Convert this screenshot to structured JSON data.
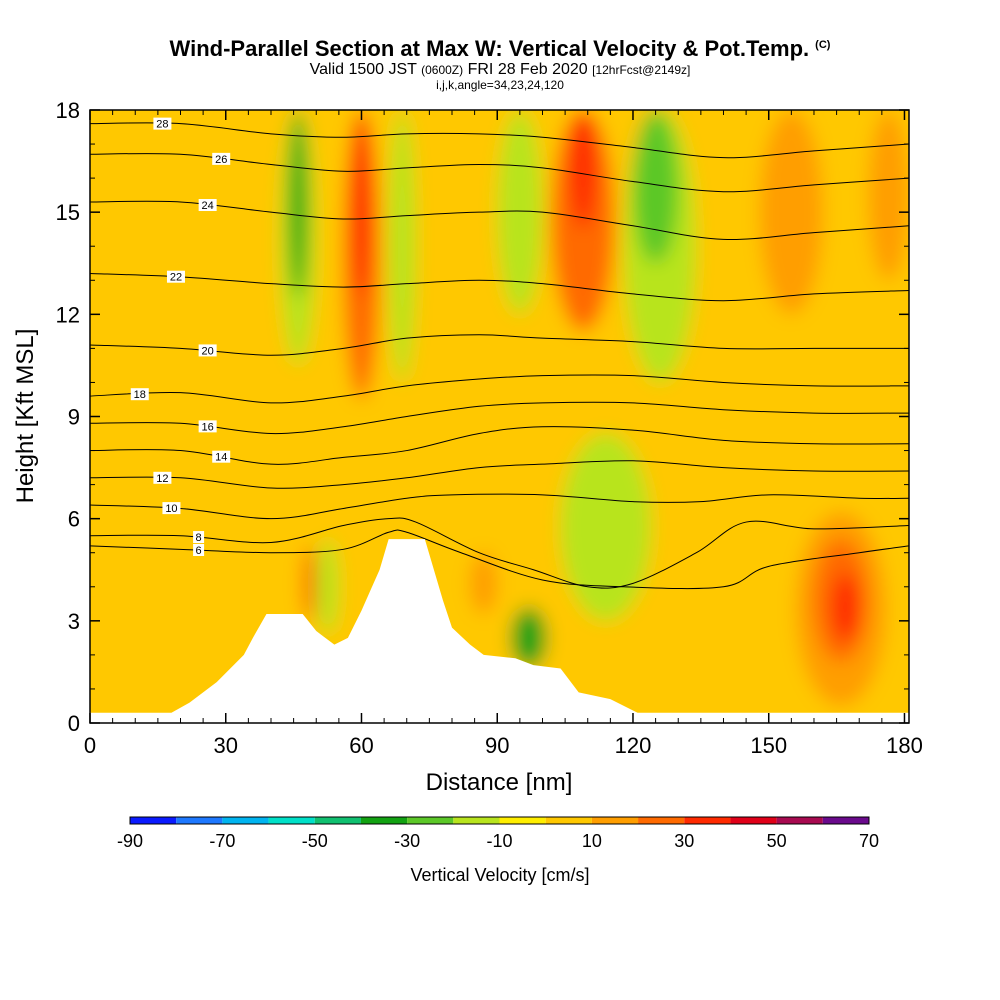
{
  "header": {
    "title": "Wind-Parallel Section at Max W: Vertical Velocity & Pot.Temp.",
    "title_tag": "(C)",
    "subtitle_main": "Valid 1500 JST",
    "subtitle_utc": "(0600Z)",
    "subtitle_date": "FRI 28 Feb 2020",
    "subtitle_fcst": "[12hrFcst@2149z]",
    "meta": "i,j,k,angle=34,23,24,120"
  },
  "chart_data": {
    "type": "heatmap",
    "title": "Wind-Parallel Section at Max W: Vertical Velocity & Pot.Temp.",
    "xlabel": "Distance [nm]",
    "ylabel": "Height [Kft MSL]",
    "xlim": [
      0,
      181
    ],
    "ylim": [
      0,
      18
    ],
    "x_ticks": [
      0,
      30,
      60,
      90,
      120,
      150,
      180
    ],
    "y_ticks": [
      0,
      3,
      6,
      9,
      12,
      15,
      18
    ],
    "x_tick_labels": [
      "0",
      "30",
      "60",
      "90",
      "120",
      "150",
      "180"
    ],
    "y_tick_labels": [
      "0",
      "3",
      "6",
      "9",
      "12",
      "15",
      "18"
    ],
    "colorbar": {
      "title": "Vertical Velocity [cm/s]",
      "levels": [
        -90,
        -80,
        -70,
        -60,
        -50,
        -40,
        -30,
        -20,
        -10,
        0,
        10,
        20,
        30,
        40,
        50,
        60,
        70
      ],
      "tick_labels": [
        "-90",
        "-70",
        "-50",
        "-30",
        "-10",
        "10",
        "30",
        "50",
        "70"
      ],
      "tick_values": [
        -90,
        -70,
        -50,
        -30,
        -10,
        10,
        30,
        50,
        70
      ],
      "colors": [
        "#0a1aff",
        "#1e78ff",
        "#00b4f0",
        "#00e0c8",
        "#10c070",
        "#12a212",
        "#5cc828",
        "#b8e41e",
        "#ffee00",
        "#ffc800",
        "#ff9e00",
        "#ff6a00",
        "#ff2a00",
        "#e00018",
        "#a80a50",
        "#6a0a8c"
      ]
    },
    "terrain": [
      [
        0,
        0.3
      ],
      [
        18,
        0.3
      ],
      [
        22,
        0.6
      ],
      [
        25,
        0.9
      ],
      [
        28,
        1.2
      ],
      [
        31,
        1.6
      ],
      [
        34,
        2.0
      ],
      [
        36,
        2.5
      ],
      [
        39,
        3.2
      ],
      [
        47,
        3.2
      ],
      [
        50,
        2.7
      ],
      [
        54,
        2.3
      ],
      [
        57,
        2.5
      ],
      [
        60,
        3.3
      ],
      [
        62,
        3.9
      ],
      [
        64,
        4.5
      ],
      [
        66,
        5.4
      ],
      [
        74,
        5.4
      ],
      [
        76,
        4.5
      ],
      [
        78,
        3.6
      ],
      [
        80,
        2.8
      ],
      [
        84,
        2.3
      ],
      [
        87,
        2.0
      ],
      [
        94,
        1.9
      ],
      [
        98,
        1.7
      ],
      [
        104,
        1.6
      ],
      [
        108,
        0.9
      ],
      [
        115,
        0.7
      ],
      [
        121,
        0.3
      ],
      [
        181,
        0.3
      ]
    ],
    "theta_contours": [
      {
        "label": "6",
        "label_x": 24,
        "pts": [
          [
            0,
            5.2
          ],
          [
            20,
            5.1
          ],
          [
            40,
            5.0
          ],
          [
            56,
            5.1
          ],
          [
            66,
            5.6
          ],
          [
            70,
            5.6
          ],
          [
            82,
            5.0
          ],
          [
            100,
            4.2
          ],
          [
            118,
            4.0
          ],
          [
            140,
            4.0
          ],
          [
            150,
            4.6
          ],
          [
            170,
            5.0
          ],
          [
            181,
            5.2
          ]
        ]
      },
      {
        "label": "8",
        "label_x": 24,
        "pts": [
          [
            0,
            5.5
          ],
          [
            20,
            5.5
          ],
          [
            40,
            5.3
          ],
          [
            56,
            5.8
          ],
          [
            66,
            6.0
          ],
          [
            72,
            5.9
          ],
          [
            86,
            5.0
          ],
          [
            98,
            4.5
          ],
          [
            110,
            4.0
          ],
          [
            120,
            4.1
          ],
          [
            134,
            5.0
          ],
          [
            145,
            5.9
          ],
          [
            160,
            5.7
          ],
          [
            181,
            5.8
          ]
        ]
      },
      {
        "label": "10",
        "label_x": 18,
        "pts": [
          [
            0,
            6.4
          ],
          [
            20,
            6.3
          ],
          [
            40,
            6.0
          ],
          [
            56,
            6.3
          ],
          [
            70,
            6.6
          ],
          [
            80,
            6.7
          ],
          [
            100,
            6.7
          ],
          [
            120,
            6.5
          ],
          [
            135,
            6.5
          ],
          [
            150,
            6.7
          ],
          [
            170,
            6.6
          ],
          [
            181,
            6.6
          ]
        ]
      },
      {
        "label": "12",
        "label_x": 16,
        "pts": [
          [
            0,
            7.2
          ],
          [
            20,
            7.2
          ],
          [
            40,
            6.9
          ],
          [
            56,
            7.0
          ],
          [
            70,
            7.2
          ],
          [
            86,
            7.5
          ],
          [
            100,
            7.6
          ],
          [
            120,
            7.7
          ],
          [
            140,
            7.5
          ],
          [
            160,
            7.4
          ],
          [
            181,
            7.4
          ]
        ]
      },
      {
        "label": "14",
        "label_x": 29,
        "pts": [
          [
            0,
            8.0
          ],
          [
            20,
            8.0
          ],
          [
            40,
            7.6
          ],
          [
            56,
            7.8
          ],
          [
            70,
            8.0
          ],
          [
            86,
            8.5
          ],
          [
            100,
            8.7
          ],
          [
            120,
            8.6
          ],
          [
            140,
            8.3
          ],
          [
            160,
            8.2
          ],
          [
            181,
            8.2
          ]
        ]
      },
      {
        "label": "16",
        "label_x": 26,
        "pts": [
          [
            0,
            8.8
          ],
          [
            20,
            8.8
          ],
          [
            40,
            8.5
          ],
          [
            56,
            8.7
          ],
          [
            70,
            9.0
          ],
          [
            86,
            9.3
          ],
          [
            100,
            9.4
          ],
          [
            120,
            9.4
          ],
          [
            140,
            9.2
          ],
          [
            160,
            9.1
          ],
          [
            181,
            9.1
          ]
        ]
      },
      {
        "label": "18",
        "label_x": 11,
        "pts": [
          [
            0,
            9.6
          ],
          [
            20,
            9.7
          ],
          [
            40,
            9.4
          ],
          [
            56,
            9.6
          ],
          [
            70,
            9.9
          ],
          [
            86,
            10.1
          ],
          [
            100,
            10.2
          ],
          [
            120,
            10.2
          ],
          [
            140,
            10.0
          ],
          [
            160,
            9.9
          ],
          [
            181,
            9.9
          ]
        ]
      },
      {
        "label": "20",
        "label_x": 26,
        "pts": [
          [
            0,
            11.1
          ],
          [
            20,
            11.0
          ],
          [
            40,
            10.8
          ],
          [
            56,
            11.0
          ],
          [
            70,
            11.3
          ],
          [
            86,
            11.4
          ],
          [
            100,
            11.3
          ],
          [
            120,
            11.2
          ],
          [
            140,
            11.0
          ],
          [
            160,
            11.0
          ],
          [
            181,
            11.0
          ]
        ]
      },
      {
        "label": "22",
        "label_x": 19,
        "pts": [
          [
            0,
            13.2
          ],
          [
            20,
            13.1
          ],
          [
            40,
            12.9
          ],
          [
            56,
            12.8
          ],
          [
            70,
            12.9
          ],
          [
            86,
            13.0
          ],
          [
            100,
            12.9
          ],
          [
            120,
            12.6
          ],
          [
            140,
            12.4
          ],
          [
            160,
            12.6
          ],
          [
            181,
            12.7
          ]
        ]
      },
      {
        "label": "24",
        "label_x": 26,
        "pts": [
          [
            0,
            15.3
          ],
          [
            20,
            15.3
          ],
          [
            40,
            15.0
          ],
          [
            56,
            14.8
          ],
          [
            70,
            14.9
          ],
          [
            86,
            15.0
          ],
          [
            100,
            15.0
          ],
          [
            120,
            14.6
          ],
          [
            140,
            14.2
          ],
          [
            160,
            14.4
          ],
          [
            181,
            14.6
          ]
        ]
      },
      {
        "label": "26",
        "label_x": 29,
        "pts": [
          [
            0,
            16.7
          ],
          [
            20,
            16.7
          ],
          [
            40,
            16.4
          ],
          [
            56,
            16.2
          ],
          [
            70,
            16.3
          ],
          [
            86,
            16.4
          ],
          [
            100,
            16.3
          ],
          [
            120,
            15.9
          ],
          [
            140,
            15.6
          ],
          [
            160,
            15.8
          ],
          [
            181,
            16.0
          ]
        ]
      },
      {
        "label": "28",
        "label_x": 16,
        "pts": [
          [
            0,
            17.6
          ],
          [
            20,
            17.6
          ],
          [
            40,
            17.3
          ],
          [
            56,
            17.2
          ],
          [
            70,
            17.3
          ],
          [
            86,
            17.3
          ],
          [
            100,
            17.2
          ],
          [
            120,
            16.9
          ],
          [
            140,
            16.6
          ],
          [
            160,
            16.8
          ],
          [
            181,
            17.0
          ]
        ]
      }
    ],
    "w_cells": [
      {
        "x": [
          0,
          181
        ],
        "y": [
          0,
          18
        ],
        "w": 0
      },
      {
        "x": [
          0,
          30
        ],
        "y": [
          8.5,
          18
        ],
        "w": 8
      },
      {
        "x": [
          3,
          22
        ],
        "y": [
          0.5,
          3.6
        ],
        "w": 8
      },
      {
        "x": [
          42,
          50
        ],
        "y": [
          10.5,
          18
        ],
        "w": -12
      },
      {
        "x": [
          44,
          48
        ],
        "y": [
          12.5,
          18
        ],
        "w": -32
      },
      {
        "x": [
          56,
          64
        ],
        "y": [
          9.5,
          18
        ],
        "w": 22
      },
      {
        "x": [
          58,
          62
        ],
        "y": [
          12.5,
          18
        ],
        "w": 32
      },
      {
        "x": [
          66,
          72
        ],
        "y": [
          10,
          18
        ],
        "w": -12
      },
      {
        "x": [
          90,
          100
        ],
        "y": [
          12,
          18
        ],
        "w": -12
      },
      {
        "x": [
          102,
          116
        ],
        "y": [
          11.5,
          18
        ],
        "w": 22
      },
      {
        "x": [
          106,
          112
        ],
        "y": [
          14.5,
          18
        ],
        "w": 33
      },
      {
        "x": [
          118,
          134
        ],
        "y": [
          10,
          18
        ],
        "w": -12
      },
      {
        "x": [
          120,
          130
        ],
        "y": [
          13.5,
          18
        ],
        "w": -28
      },
      {
        "x": [
          148,
          162
        ],
        "y": [
          12,
          18
        ],
        "w": 15
      },
      {
        "x": [
          172,
          181
        ],
        "y": [
          13,
          18
        ],
        "w": 18
      },
      {
        "x": [
          104,
          124
        ],
        "y": [
          3,
          8.5
        ],
        "w": -12
      },
      {
        "x": [
          93,
          101
        ],
        "y": [
          1.6,
          3.4
        ],
        "w": -32
      },
      {
        "x": [
          84,
          90
        ],
        "y": [
          3.2,
          5
        ],
        "w": 15
      },
      {
        "x": [
          50,
          55
        ],
        "y": [
          2.6,
          5.4
        ],
        "w": -12
      },
      {
        "x": [
          47,
          50
        ],
        "y": [
          3.0,
          5.2
        ],
        "w": 25
      },
      {
        "x": [
          136,
          150
        ],
        "y": [
          0.5,
          6.5
        ],
        "w": 8
      },
      {
        "x": [
          156,
          176
        ],
        "y": [
          0.5,
          6.2
        ],
        "w": 15
      },
      {
        "x": [
          160,
          172
        ],
        "y": [
          1.8,
          5.4
        ],
        "w": 22
      },
      {
        "x": [
          164,
          170
        ],
        "y": [
          2.4,
          4.4
        ],
        "w": 33
      }
    ]
  },
  "colors": {
    "background": "#ffffff",
    "terrain": "#ffffff",
    "contour": "#000000"
  }
}
